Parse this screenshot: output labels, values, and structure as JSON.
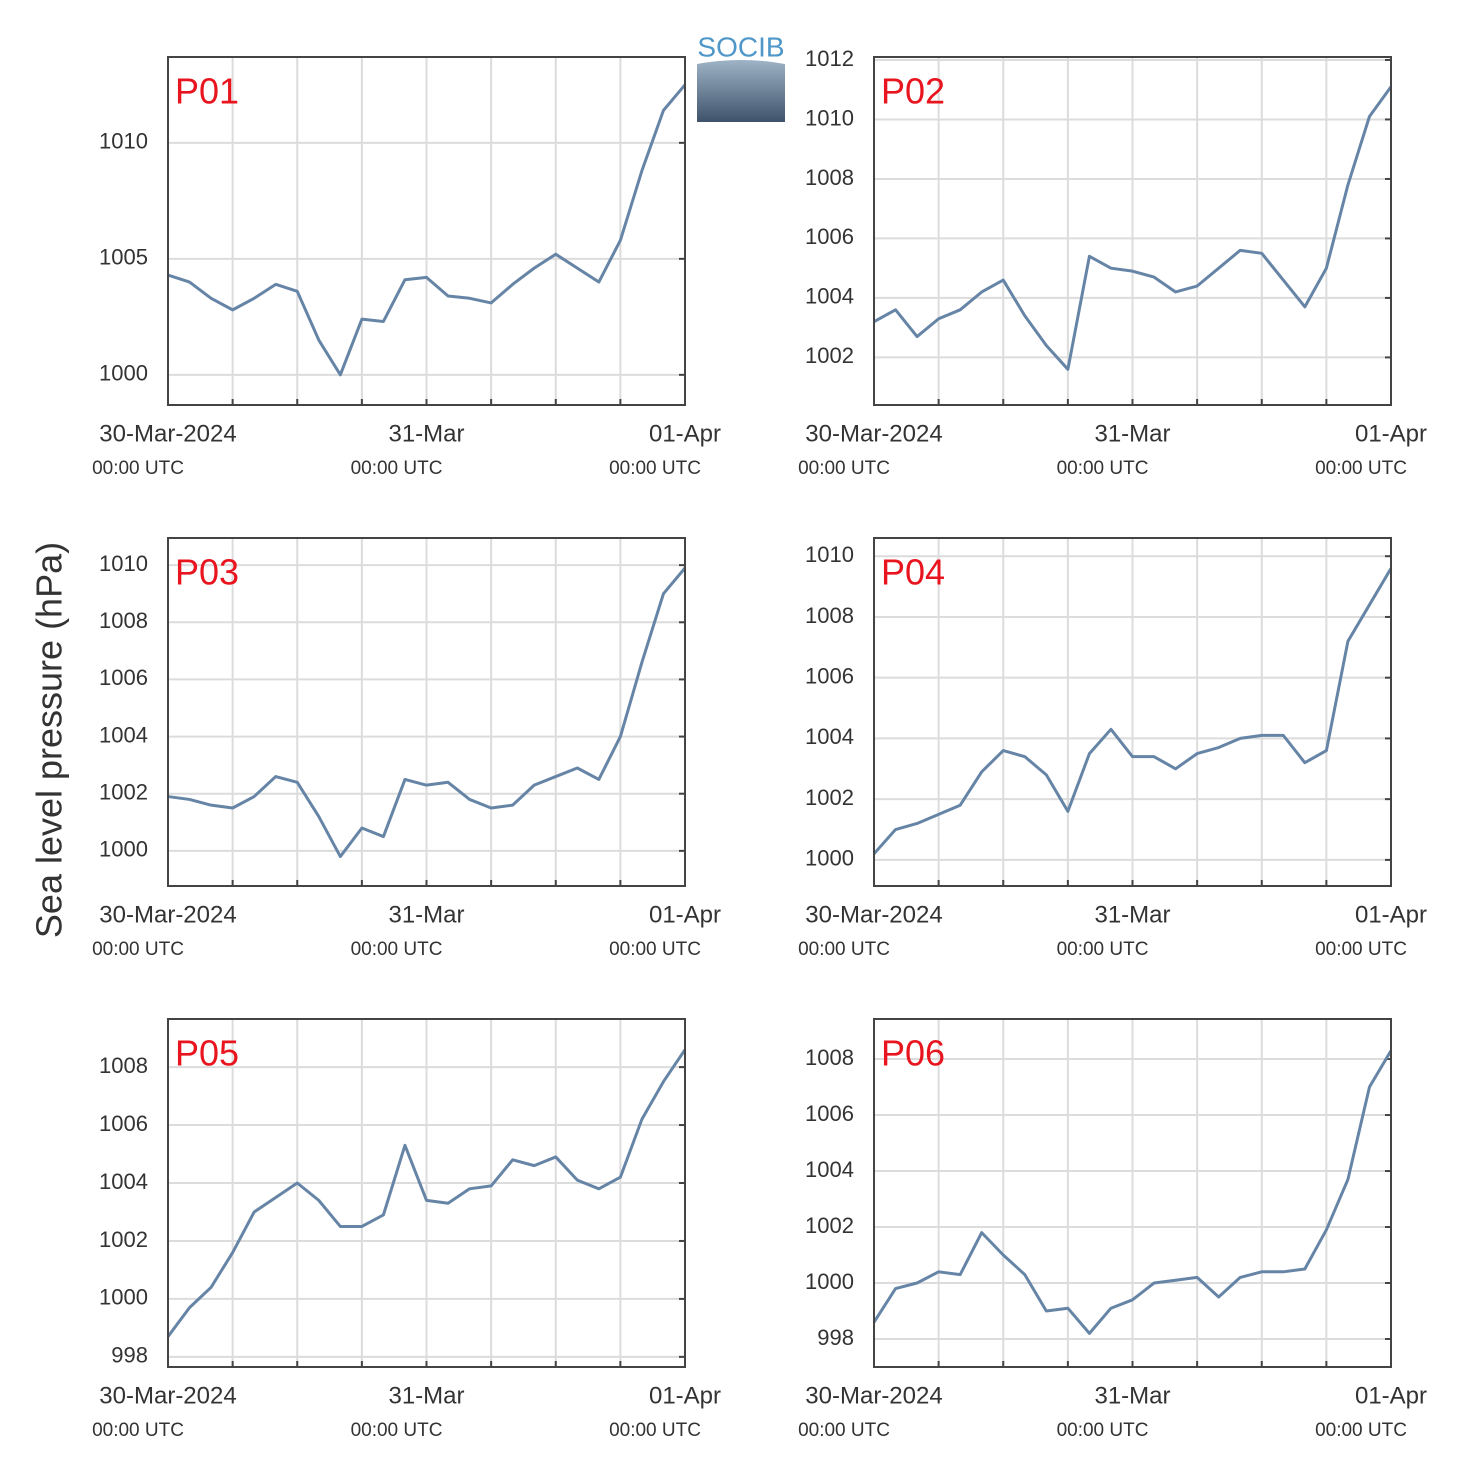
{
  "y_axis_label": "Sea level pressure (hPa)",
  "logo": "SOCIB",
  "chart_data": [
    {
      "type": "line",
      "title": "P01",
      "color": "#6685a6",
      "grid": true,
      "x": [
        0,
        2,
        4,
        6,
        8,
        10,
        12,
        14,
        16,
        18,
        20,
        22,
        24,
        26,
        28,
        30,
        32,
        34,
        36,
        38,
        40,
        42,
        44,
        46,
        48
      ],
      "values": [
        1004.3,
        1004.0,
        1003.3,
        1002.8,
        1003.3,
        1003.9,
        1003.6,
        1001.5,
        1000.0,
        1002.4,
        1002.3,
        1004.1,
        1004.2,
        1003.4,
        1003.3,
        1003.1,
        1003.9,
        1004.6,
        1005.2,
        1004.6,
        1004.0,
        1005.8,
        1008.8,
        1011.4,
        1012.5
      ],
      "xlim": [
        0,
        48
      ],
      "ylim": [
        998.7,
        1013.7
      ],
      "yticks": [
        1000,
        1005,
        1010
      ],
      "xticks": [
        {
          "value": 0,
          "label": "30-Mar-2024",
          "sublabel": "00:00 UTC"
        },
        {
          "value": 6,
          "label": null
        },
        {
          "value": 12,
          "label": null
        },
        {
          "value": 18,
          "label": null
        },
        {
          "value": 24,
          "label": "31-Mar",
          "sublabel": "00:00 UTC"
        },
        {
          "value": 30,
          "label": null
        },
        {
          "value": 36,
          "label": null
        },
        {
          "value": 42,
          "label": null
        },
        {
          "value": 48,
          "label": "01-Apr",
          "sublabel": "00:00 UTC"
        }
      ]
    },
    {
      "type": "line",
      "title": "P02",
      "color": "#6685a6",
      "grid": true,
      "x": [
        0,
        2,
        4,
        6,
        8,
        10,
        12,
        14,
        16,
        18,
        20,
        22,
        24,
        26,
        28,
        30,
        32,
        34,
        36,
        38,
        40,
        42,
        44,
        46,
        48
      ],
      "values": [
        1003.2,
        1003.6,
        1002.7,
        1003.3,
        1003.6,
        1004.2,
        1004.6,
        1003.4,
        1002.4,
        1001.6,
        1005.4,
        1005.0,
        1004.9,
        1004.7,
        1004.2,
        1004.4,
        1005.0,
        1005.6,
        1005.5,
        1004.6,
        1003.7,
        1005.0,
        1007.8,
        1010.1,
        1011.1
      ],
      "xlim": [
        0,
        48
      ],
      "ylim": [
        1000.4,
        1012.1
      ],
      "yticks": [
        1002,
        1004,
        1006,
        1008,
        1010,
        1012
      ],
      "xticks": [
        {
          "value": 0,
          "label": "30-Mar-2024",
          "sublabel": "00:00 UTC"
        },
        {
          "value": 6,
          "label": null
        },
        {
          "value": 12,
          "label": null
        },
        {
          "value": 18,
          "label": null
        },
        {
          "value": 24,
          "label": "31-Mar",
          "sublabel": "00:00 UTC"
        },
        {
          "value": 30,
          "label": null
        },
        {
          "value": 36,
          "label": null
        },
        {
          "value": 42,
          "label": null
        },
        {
          "value": 48,
          "label": "01-Apr",
          "sublabel": "00:00 UTC"
        }
      ]
    },
    {
      "type": "line",
      "title": "P03",
      "color": "#6685a6",
      "grid": true,
      "x": [
        0,
        2,
        4,
        6,
        8,
        10,
        12,
        14,
        16,
        18,
        20,
        22,
        24,
        26,
        28,
        30,
        32,
        34,
        36,
        38,
        40,
        42,
        44,
        46,
        48
      ],
      "values": [
        1001.9,
        1001.8,
        1001.6,
        1001.5,
        1001.9,
        1002.6,
        1002.4,
        1001.2,
        999.8,
        1000.8,
        1000.5,
        1002.5,
        1002.3,
        1002.4,
        1001.8,
        1001.5,
        1001.6,
        1002.3,
        1002.6,
        1002.9,
        1002.5,
        1004.0,
        1006.6,
        1009.0,
        1009.9
      ],
      "xlim": [
        0,
        48
      ],
      "ylim": [
        998.77,
        1010.95
      ],
      "yticks": [
        1000,
        1002,
        1004,
        1006,
        1008,
        1010
      ],
      "xticks": [
        {
          "value": 0,
          "label": "30-Mar-2024",
          "sublabel": "00:00 UTC"
        },
        {
          "value": 6,
          "label": null
        },
        {
          "value": 12,
          "label": null
        },
        {
          "value": 18,
          "label": null
        },
        {
          "value": 24,
          "label": "31-Mar",
          "sublabel": "00:00 UTC"
        },
        {
          "value": 30,
          "label": null
        },
        {
          "value": 36,
          "label": null
        },
        {
          "value": 42,
          "label": null
        },
        {
          "value": 48,
          "label": "01-Apr",
          "sublabel": "00:00 UTC"
        }
      ]
    },
    {
      "type": "line",
      "title": "P04",
      "color": "#6685a6",
      "grid": true,
      "x": [
        0,
        2,
        4,
        6,
        8,
        10,
        12,
        14,
        16,
        18,
        20,
        22,
        24,
        26,
        28,
        30,
        32,
        34,
        36,
        38,
        40,
        42,
        44,
        46,
        48
      ],
      "values": [
        1000.2,
        1001.0,
        1001.2,
        1001.5,
        1001.8,
        1002.9,
        1003.6,
        1003.4,
        1002.8,
        1001.6,
        1003.5,
        1004.3,
        1003.4,
        1003.4,
        1003.0,
        1003.5,
        1003.7,
        1004.0,
        1004.1,
        1004.1,
        1003.2,
        1003.6,
        1007.2,
        1008.4,
        1009.6
      ],
      "xlim": [
        0,
        48
      ],
      "ylim": [
        999.14,
        1010.6
      ],
      "yticks": [
        1000,
        1002,
        1004,
        1006,
        1008,
        1010
      ],
      "xticks": [
        {
          "value": 0,
          "label": "30-Mar-2024",
          "sublabel": "00:00 UTC"
        },
        {
          "value": 6,
          "label": null
        },
        {
          "value": 12,
          "label": null
        },
        {
          "value": 18,
          "label": null
        },
        {
          "value": 24,
          "label": "31-Mar",
          "sublabel": "00:00 UTC"
        },
        {
          "value": 30,
          "label": null
        },
        {
          "value": 36,
          "label": null
        },
        {
          "value": 42,
          "label": null
        },
        {
          "value": 48,
          "label": "01-Apr",
          "sublabel": "00:00 UTC"
        }
      ]
    },
    {
      "type": "line",
      "title": "P05",
      "color": "#6685a6",
      "grid": true,
      "x": [
        0,
        2,
        4,
        6,
        8,
        10,
        12,
        14,
        16,
        18,
        20,
        22,
        24,
        26,
        28,
        30,
        32,
        34,
        36,
        38,
        40,
        42,
        44,
        46,
        48
      ],
      "values": [
        998.7,
        999.7,
        1000.4,
        1001.6,
        1003.0,
        1003.5,
        1004.0,
        1003.4,
        1002.5,
        1002.5,
        1002.9,
        1005.3,
        1003.4,
        1003.3,
        1003.8,
        1003.9,
        1004.8,
        1004.6,
        1004.9,
        1004.1,
        1003.8,
        1004.2,
        1006.2,
        1007.5,
        1008.6
      ],
      "xlim": [
        0,
        48
      ],
      "ylim": [
        997.65,
        1009.66
      ],
      "yticks": [
        998,
        1000,
        1002,
        1004,
        1006,
        1008
      ],
      "xticks": [
        {
          "value": 0,
          "label": "30-Mar-2024",
          "sublabel": "00:00 UTC"
        },
        {
          "value": 6,
          "label": null
        },
        {
          "value": 12,
          "label": null
        },
        {
          "value": 18,
          "label": null
        },
        {
          "value": 24,
          "label": "31-Mar",
          "sublabel": "00:00 UTC"
        },
        {
          "value": 30,
          "label": null
        },
        {
          "value": 36,
          "label": null
        },
        {
          "value": 42,
          "label": null
        },
        {
          "value": 48,
          "label": "01-Apr",
          "sublabel": "00:00 UTC"
        }
      ]
    },
    {
      "type": "line",
      "title": "P06",
      "color": "#6685a6",
      "grid": true,
      "x": [
        0,
        2,
        4,
        6,
        8,
        10,
        12,
        14,
        16,
        18,
        20,
        22,
        24,
        26,
        28,
        30,
        32,
        34,
        36,
        38,
        40,
        42,
        44,
        46,
        48
      ],
      "values": [
        998.6,
        999.8,
        1000.0,
        1000.4,
        1000.3,
        1001.8,
        1001.0,
        1000.3,
        999.0,
        999.1,
        998.2,
        999.1,
        999.4,
        1000.0,
        1000.1,
        1000.2,
        999.5,
        1000.2,
        1000.4,
        1000.4,
        1000.5,
        1001.9,
        1003.7,
        1007.0,
        1008.3
      ],
      "xlim": [
        0,
        48
      ],
      "ylim": [
        997.0,
        1009.43
      ],
      "yticks": [
        998,
        1000,
        1002,
        1004,
        1006,
        1008
      ],
      "xticks": [
        {
          "value": 0,
          "label": "30-Mar-2024",
          "sublabel": "00:00 UTC"
        },
        {
          "value": 6,
          "label": null
        },
        {
          "value": 12,
          "label": null
        },
        {
          "value": 18,
          "label": null
        },
        {
          "value": 24,
          "label": "31-Mar",
          "sublabel": "00:00 UTC"
        },
        {
          "value": 30,
          "label": null
        },
        {
          "value": 36,
          "label": null
        },
        {
          "value": 42,
          "label": null
        },
        {
          "value": 48,
          "label": "01-Apr",
          "sublabel": "00:00 UTC"
        }
      ]
    }
  ]
}
